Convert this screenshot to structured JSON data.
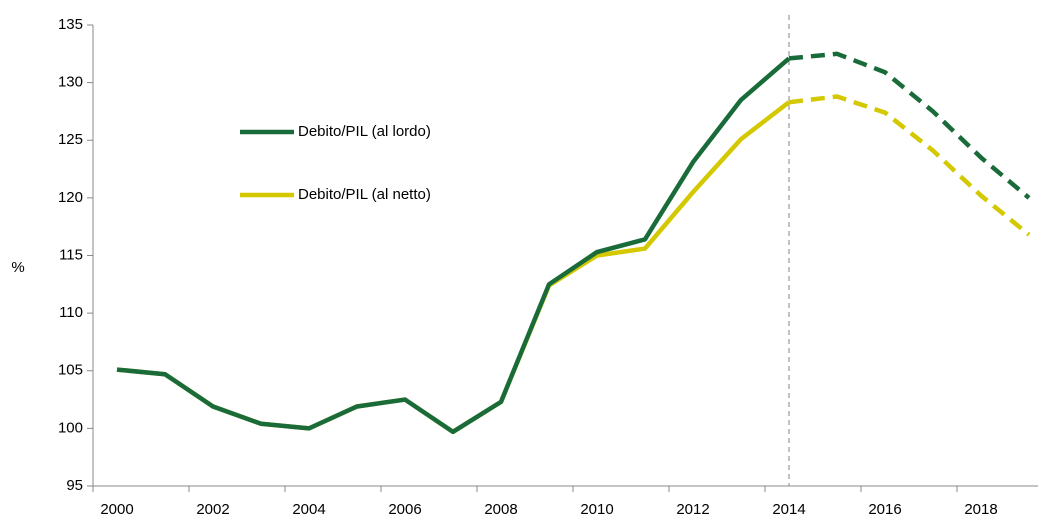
{
  "chart_data": {
    "type": "line",
    "y_label": "%",
    "categories": [
      "2000",
      null,
      "2002",
      null,
      "2004",
      null,
      "2006",
      null,
      "2008",
      null,
      "2010",
      null,
      "2012",
      null,
      "2014",
      null,
      "2016",
      null,
      "2018",
      null
    ],
    "projection_start": "2014",
    "series": [
      {
        "name": "Debito/PIL (al lordo)",
        "color": "#1a6b3a",
        "values": [
          105.1,
          104.7,
          101.9,
          100.4,
          100.0,
          101.9,
          102.5,
          99.7,
          102.3,
          112.5,
          115.3,
          116.4,
          123.1,
          128.5,
          132.1,
          132.5,
          130.9,
          127.5,
          123.5,
          120.0
        ]
      },
      {
        "name": "Debito/PIL (al netto)",
        "color": "#d4c800",
        "values": [
          105.1,
          104.7,
          101.9,
          100.4,
          100.0,
          101.9,
          102.5,
          99.7,
          102.3,
          112.4,
          115.0,
          115.6,
          120.5,
          125.1,
          128.3,
          128.8,
          127.4,
          124.1,
          120.2,
          116.8
        ]
      }
    ],
    "ylim": [
      95,
      135
    ],
    "yticks": [
      95,
      100,
      105,
      110,
      115,
      120,
      125,
      130,
      135
    ]
  }
}
